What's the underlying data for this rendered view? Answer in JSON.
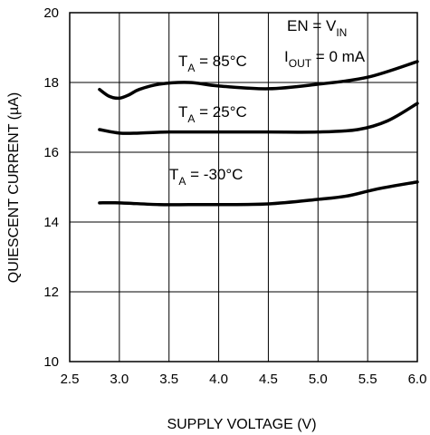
{
  "chart_data": {
    "type": "line",
    "xlabel": "SUPPLY VOLTAGE (V)",
    "ylabel": "QUIESCENT CURRENT (µA)",
    "xlim": [
      2.5,
      6.0
    ],
    "ylim": [
      10,
      20
    ],
    "x_ticks": [
      "2.5",
      "3.0",
      "3.5",
      "4.0",
      "4.5",
      "5.0",
      "5.5",
      "6.0"
    ],
    "y_ticks": [
      "10",
      "12",
      "14",
      "16",
      "18",
      "20"
    ],
    "grid": true,
    "conditions": {
      "line1": {
        "main": "EN = V",
        "sub": "IN"
      },
      "line2": {
        "prefix": "I",
        "sub": "OUT",
        "main": " = 0 mA"
      }
    },
    "series": [
      {
        "name": "T_A = 85°C",
        "label": {
          "prefix": "T",
          "sub": "A",
          "main": " = 85°C"
        },
        "x": [
          2.8,
          2.9,
          3.0,
          3.1,
          3.2,
          3.4,
          3.7,
          4.0,
          4.5,
          5.0,
          5.5,
          6.0
        ],
        "y": [
          17.8,
          17.6,
          17.55,
          17.65,
          17.8,
          17.95,
          18.0,
          17.9,
          17.82,
          17.95,
          18.15,
          18.6
        ]
      },
      {
        "name": "T_A = 25°C",
        "label": {
          "prefix": "T",
          "sub": "A",
          "main": " = 25°C"
        },
        "x": [
          2.8,
          3.0,
          3.2,
          3.5,
          4.0,
          4.5,
          5.0,
          5.4,
          5.7,
          6.0
        ],
        "y": [
          16.65,
          16.55,
          16.55,
          16.58,
          16.58,
          16.58,
          16.58,
          16.65,
          16.9,
          17.4
        ]
      },
      {
        "name": "T_A = -30°C",
        "label": {
          "prefix": "T",
          "sub": "A",
          "main": " = -30°C"
        },
        "x": [
          2.8,
          3.0,
          3.4,
          3.7,
          4.0,
          4.5,
          5.0,
          5.3,
          5.6,
          6.0
        ],
        "y": [
          14.55,
          14.55,
          14.5,
          14.5,
          14.5,
          14.52,
          14.65,
          14.75,
          14.95,
          15.15
        ]
      }
    ]
  }
}
